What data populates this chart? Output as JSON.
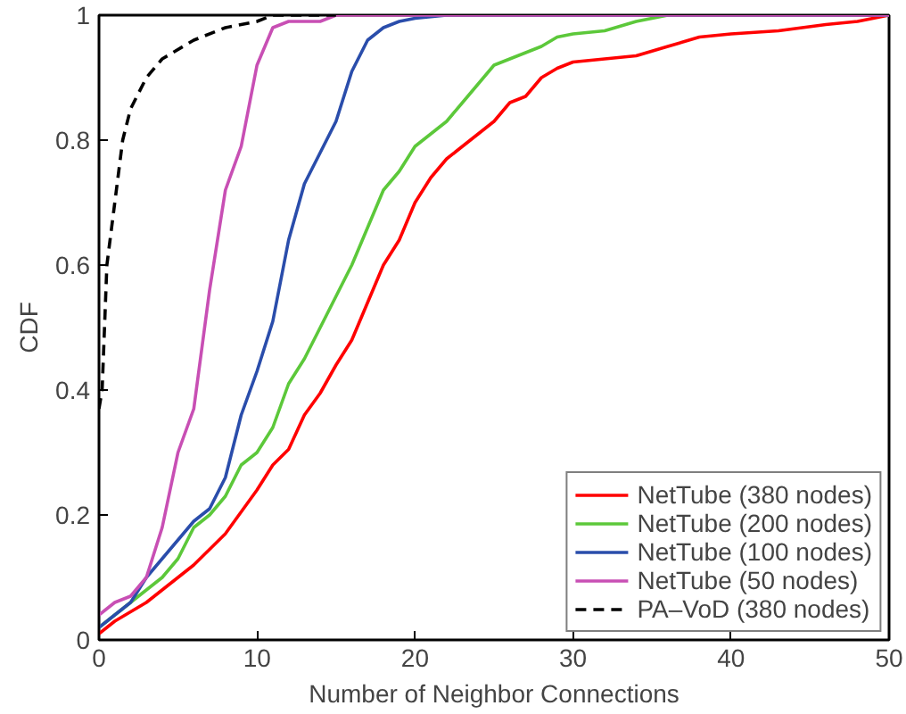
{
  "chart_data": {
    "type": "line",
    "xlabel": "Number of Neighbor Connections",
    "ylabel": "CDF",
    "xlim": [
      0,
      50
    ],
    "ylim": [
      0,
      1
    ],
    "xticks": [
      0,
      10,
      20,
      30,
      40,
      50
    ],
    "yticks": [
      0,
      0.2,
      0.4,
      0.6,
      0.8,
      1
    ],
    "grid": false,
    "legend": "bottom right",
    "series": [
      {
        "name": "NetTube (380 nodes)",
        "color": "#ff0000",
        "line_style": "solid",
        "x": [
          0,
          1,
          2,
          3,
          4,
          5,
          6,
          7,
          8,
          9,
          10,
          11,
          12,
          13,
          14,
          15,
          16,
          17,
          18,
          19,
          20,
          21,
          22,
          23,
          24,
          25,
          26,
          27,
          28,
          29,
          30,
          32,
          34,
          36,
          38,
          40,
          43,
          46,
          48,
          50
        ],
        "values": [
          0.01,
          0.03,
          0.045,
          0.06,
          0.08,
          0.1,
          0.12,
          0.145,
          0.17,
          0.205,
          0.24,
          0.28,
          0.305,
          0.36,
          0.395,
          0.44,
          0.48,
          0.54,
          0.6,
          0.64,
          0.7,
          0.74,
          0.77,
          0.79,
          0.81,
          0.83,
          0.86,
          0.87,
          0.9,
          0.915,
          0.925,
          0.93,
          0.935,
          0.95,
          0.965,
          0.97,
          0.975,
          0.985,
          0.99,
          1
        ]
      },
      {
        "name": "NetTube (200 nodes)",
        "color": "#5cc83a",
        "line_style": "solid",
        "x": [
          0,
          1,
          2,
          3,
          4,
          5,
          6,
          7,
          8,
          9,
          10,
          11,
          12,
          13,
          14,
          15,
          16,
          17,
          18,
          19,
          20,
          21,
          22,
          23,
          24,
          25,
          26,
          27,
          28,
          29,
          30,
          32,
          34,
          36,
          50
        ],
        "values": [
          0.02,
          0.04,
          0.06,
          0.08,
          0.1,
          0.13,
          0.18,
          0.2,
          0.23,
          0.28,
          0.3,
          0.34,
          0.41,
          0.45,
          0.5,
          0.55,
          0.6,
          0.66,
          0.72,
          0.75,
          0.79,
          0.81,
          0.83,
          0.86,
          0.89,
          0.92,
          0.93,
          0.94,
          0.95,
          0.965,
          0.97,
          0.975,
          0.99,
          1,
          1
        ]
      },
      {
        "name": "NetTube (100 nodes)",
        "color": "#2a4dab",
        "line_style": "solid",
        "x": [
          0,
          1,
          2,
          3,
          4,
          5,
          6,
          7,
          8,
          9,
          10,
          11,
          12,
          13,
          14,
          15,
          16,
          17,
          18,
          19,
          20,
          22,
          50
        ],
        "values": [
          0.02,
          0.04,
          0.06,
          0.1,
          0.13,
          0.16,
          0.19,
          0.21,
          0.26,
          0.36,
          0.43,
          0.51,
          0.64,
          0.73,
          0.78,
          0.83,
          0.91,
          0.96,
          0.98,
          0.99,
          0.995,
          1,
          1
        ]
      },
      {
        "name": "NetTube (50 nodes)",
        "color": "#c84fb4",
        "line_style": "solid",
        "x": [
          0,
          1,
          2,
          3,
          4,
          5,
          6,
          7,
          8,
          9,
          10,
          11,
          12,
          13,
          14,
          15,
          50
        ],
        "values": [
          0.04,
          0.06,
          0.07,
          0.1,
          0.18,
          0.3,
          0.37,
          0.56,
          0.72,
          0.79,
          0.92,
          0.98,
          0.99,
          0.99,
          0.99,
          1,
          1
        ]
      },
      {
        "name": "PA–VoD (380 nodes)",
        "color": "#000000",
        "line_style": "dashed",
        "x": [
          0,
          0.2,
          0.5,
          1,
          1.5,
          2,
          3,
          4,
          6,
          8,
          10,
          11,
          15
        ],
        "values": [
          0.37,
          0.4,
          0.6,
          0.7,
          0.8,
          0.85,
          0.9,
          0.93,
          0.96,
          0.98,
          0.99,
          1,
          1
        ]
      }
    ]
  }
}
